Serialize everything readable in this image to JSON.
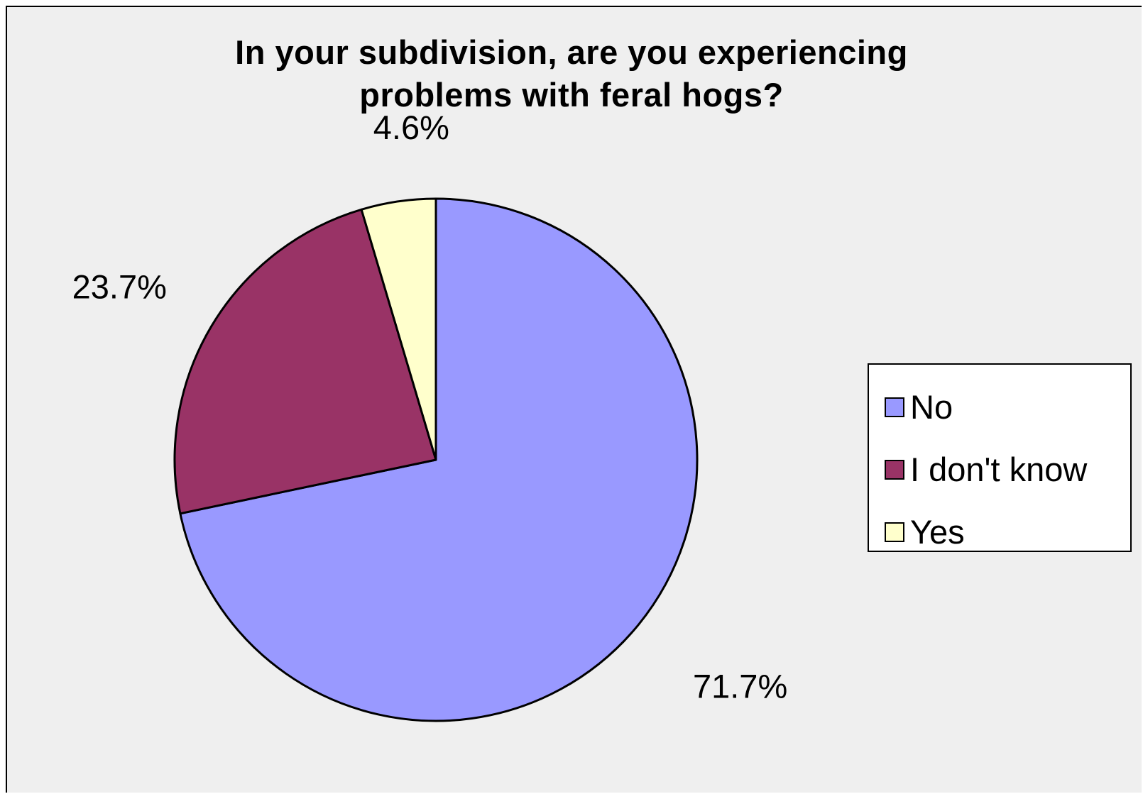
{
  "chart_data": {
    "type": "pie",
    "title": "In your subdivision, are you experiencing problems with feral hogs?",
    "title_lines": [
      "In your subdivision, are you experiencing",
      "problems with feral hogs?"
    ],
    "slices": [
      {
        "label": "No",
        "value": 71.7,
        "display": "71.7%",
        "color": "#9999ff"
      },
      {
        "label": "I don't know",
        "value": 23.7,
        "display": "23.7%",
        "color": "#993366"
      },
      {
        "label": "Yes",
        "value": 4.6,
        "display": "4.6%",
        "color": "#ffffcc"
      }
    ],
    "legend_position": "right",
    "start_angle": "12 o'clock",
    "direction": "clockwise"
  },
  "colors": {
    "background": "#efefef",
    "legend_background": "#ffffff",
    "outline": "#000000"
  }
}
